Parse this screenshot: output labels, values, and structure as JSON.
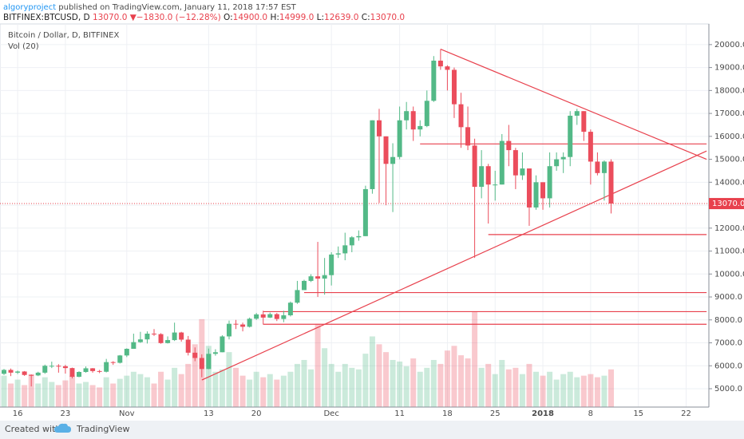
{
  "header": {
    "author": "algoryproject",
    "published": "published on TradingView.com, January 11, 2018 17:57 EST",
    "symbol": "BITFINEX:BTCUSD, D",
    "last": "13070.0",
    "arrow": "▼",
    "change": "−1830.0 (−12.28%)",
    "o_label": "O:",
    "o": "14900.0",
    "h_label": "H:",
    "h": "14999.0",
    "l_label": "L:",
    "l": "12639.0",
    "c_label": "C:",
    "c": "13070.0"
  },
  "footer": {
    "created": "Created with",
    "brand": "TradingView"
  },
  "chart_data": {
    "type": "candlestick",
    "title": "Bitcoin / Dollar, D, BITFINEX",
    "volume_label": "Vol (20)",
    "up_color": "#53b987",
    "down_color": "#eb4d5c",
    "line_color": "#e8414d",
    "categories": [
      "2017-10-14",
      "2017-10-15",
      "2017-10-16",
      "2017-10-17",
      "2017-10-18",
      "2017-10-19",
      "2017-10-20",
      "2017-10-21",
      "2017-10-22",
      "2017-10-23",
      "2017-10-24",
      "2017-10-25",
      "2017-10-26",
      "2017-10-27",
      "2017-10-28",
      "2017-10-29",
      "2017-10-30",
      "2017-10-31",
      "2017-11-01",
      "2017-11-02",
      "2017-11-03",
      "2017-11-04",
      "2017-11-05",
      "2017-11-06",
      "2017-11-07",
      "2017-11-08",
      "2017-11-09",
      "2017-11-10",
      "2017-11-11",
      "2017-11-12",
      "2017-11-13",
      "2017-11-14",
      "2017-11-15",
      "2017-11-16",
      "2017-11-17",
      "2017-11-18",
      "2017-11-19",
      "2017-11-20",
      "2017-11-21",
      "2017-11-22",
      "2017-11-23",
      "2017-11-24",
      "2017-11-25",
      "2017-11-26",
      "2017-11-27",
      "2017-11-28",
      "2017-11-29",
      "2017-11-30",
      "2017-12-01",
      "2017-12-02",
      "2017-12-03",
      "2017-12-04",
      "2017-12-05",
      "2017-12-06",
      "2017-12-07",
      "2017-12-08",
      "2017-12-09",
      "2017-12-10",
      "2017-12-11",
      "2017-12-12",
      "2017-12-13",
      "2017-12-14",
      "2017-12-15",
      "2017-12-16",
      "2017-12-17",
      "2017-12-18",
      "2017-12-19",
      "2017-12-20",
      "2017-12-21",
      "2017-12-22",
      "2017-12-23",
      "2017-12-24",
      "2017-12-25",
      "2017-12-26",
      "2017-12-27",
      "2017-12-28",
      "2017-12-29",
      "2017-12-30",
      "2017-12-31",
      "2018-01-01",
      "2018-01-02",
      "2018-01-03",
      "2018-01-04",
      "2018-01-05",
      "2018-01-06",
      "2018-01-07",
      "2018-01-08",
      "2018-01-09",
      "2018-01-10",
      "2018-01-11"
    ],
    "open": [
      5650,
      5820,
      5700,
      5750,
      5600,
      5580,
      5700,
      6000,
      6000,
      5980,
      5900,
      5520,
      5730,
      5890,
      5770,
      5740,
      6160,
      6130,
      6450,
      6740,
      7030,
      7150,
      7400,
      7380,
      6990,
      7120,
      7450,
      7140,
      6570,
      6340,
      5860,
      6520,
      6590,
      7280,
      7830,
      7800,
      7700,
      8050,
      8240,
      8100,
      8250,
      8040,
      8200,
      8750,
      9300,
      9700,
      9900,
      9800,
      9950,
      10850,
      10900,
      11250,
      11600,
      11650,
      13700,
      16700,
      16000,
      14800,
      15100,
      16700,
      17100,
      16300,
      16450,
      17550,
      19300,
      19050,
      18900,
      17400,
      16400,
      15600,
      13800,
      14700,
      13900,
      13900,
      15800,
      15400,
      14300,
      14600,
      12900,
      14000,
      13300,
      14700,
      15000,
      15100,
      16900,
      17100,
      16200,
      14900,
      14400,
      14900
    ],
    "high": [
      5860,
      5880,
      5790,
      5770,
      5620,
      5740,
      6050,
      6180,
      6070,
      6040,
      5920,
      5760,
      5970,
      5900,
      5820,
      6300,
      6200,
      6470,
      6760,
      7400,
      7480,
      7500,
      7600,
      7420,
      7280,
      7880,
      7480,
      7300,
      6800,
      6500,
      6750,
      6720,
      7330,
      7970,
      8000,
      7880,
      8100,
      8300,
      8400,
      8320,
      8300,
      8400,
      8800,
      9700,
      9750,
      9990,
      11400,
      10700,
      10950,
      11200,
      11800,
      11650,
      11900,
      13850,
      16700,
      17200,
      16000,
      15700,
      17300,
      17500,
      17300,
      16700,
      18000,
      19500,
      19800,
      19100,
      19000,
      17900,
      17300,
      15900,
      15400,
      14800,
      14500,
      16100,
      16500,
      15500,
      15300,
      14600,
      14300,
      14000,
      15300,
      15300,
      15300,
      17100,
      17200,
      17100,
      16300,
      15300,
      14950,
      14999
    ],
    "low": [
      5600,
      5550,
      5640,
      5560,
      5100,
      5550,
      5650,
      5900,
      5700,
      5660,
      5450,
      5500,
      5700,
      5700,
      5680,
      5710,
      6040,
      6100,
      6380,
      6740,
      7000,
      6970,
      7300,
      6960,
      6970,
      7080,
      7050,
      6450,
      6200,
      5500,
      5850,
      6440,
      6590,
      7150,
      7600,
      7500,
      7670,
      8000,
      7800,
      8080,
      7950,
      7900,
      8150,
      8700,
      9300,
      9650,
      9000,
      9100,
      9500,
      10700,
      10600,
      10950,
      11450,
      11650,
      13500,
      13100,
      13000,
      12700,
      15000,
      16300,
      15800,
      16000,
      16400,
      17500,
      18900,
      18000,
      16800,
      15500,
      15400,
      10700,
      13300,
      12200,
      13200,
      13900,
      14700,
      13700,
      14100,
      12100,
      12800,
      12800,
      12900,
      14500,
      14400,
      14700,
      16500,
      15800,
      13900,
      14300,
      13200,
      12639
    ],
    "close": [
      5820,
      5700,
      5750,
      5600,
      5580,
      5700,
      6000,
      6000,
      5980,
      5900,
      5520,
      5730,
      5890,
      5770,
      5740,
      6160,
      6130,
      6450,
      6740,
      7030,
      7150,
      7400,
      7380,
      6990,
      7120,
      7450,
      7140,
      6570,
      6340,
      5860,
      6520,
      6590,
      7280,
      7830,
      7800,
      7700,
      8050,
      8240,
      8100,
      8250,
      8040,
      8200,
      8750,
      9300,
      9700,
      9900,
      9800,
      9950,
      10850,
      10900,
      11250,
      11600,
      11650,
      13700,
      16700,
      16000,
      14800,
      15100,
      16700,
      17100,
      16300,
      16450,
      17550,
      19300,
      19050,
      18900,
      17400,
      16400,
      15600,
      13800,
      14700,
      13900,
      13900,
      15800,
      15400,
      14300,
      14600,
      12900,
      14000,
      13300,
      14700,
      15000,
      15100,
      16900,
      17100,
      16200,
      14900,
      14400,
      14900,
      13070
    ],
    "volume": [
      40,
      30,
      35,
      28,
      42,
      30,
      38,
      32,
      28,
      34,
      40,
      30,
      32,
      28,
      25,
      38,
      30,
      36,
      40,
      45,
      42,
      38,
      30,
      45,
      35,
      50,
      42,
      55,
      80,
      112,
      78,
      45,
      48,
      70,
      50,
      40,
      35,
      45,
      38,
      42,
      35,
      40,
      45,
      55,
      60,
      48,
      106,
      75,
      55,
      45,
      55,
      50,
      48,
      68,
      90,
      80,
      70,
      60,
      58,
      52,
      62,
      45,
      50,
      60,
      55,
      72,
      78,
      66,
      62,
      122,
      50,
      55,
      42,
      60,
      48,
      50,
      42,
      55,
      45,
      40,
      45,
      35,
      42,
      45,
      38,
      40,
      42,
      38,
      40,
      48
    ],
    "ylim": [
      4200,
      20900
    ],
    "yticks": [
      {
        "value": 5000,
        "label": "5000.0"
      },
      {
        "value": 6000,
        "label": "6000.0"
      },
      {
        "value": 7000,
        "label": "7000.0"
      },
      {
        "value": 8000,
        "label": "8000.0"
      },
      {
        "value": 9000,
        "label": "9000.0"
      },
      {
        "value": 10000,
        "label": "10000.0"
      },
      {
        "value": 11000,
        "label": "11000.0"
      },
      {
        "value": 12000,
        "label": "12000.0"
      },
      {
        "value": 13000,
        "label": "13000.0"
      },
      {
        "value": 14000,
        "label": "14000.0"
      },
      {
        "value": 15000,
        "label": "15000.0"
      },
      {
        "value": 16000,
        "label": "16000.0"
      },
      {
        "value": 17000,
        "label": "17000.0"
      },
      {
        "value": 18000,
        "label": "18000.0"
      },
      {
        "value": 19000,
        "label": "19000.0"
      },
      {
        "value": 20000,
        "label": "20000.0"
      }
    ],
    "xticks": [
      {
        "value": "2017-10-16",
        "label": "16"
      },
      {
        "value": "2017-10-23",
        "label": "23"
      },
      {
        "value": "2017-11-01",
        "label": "Nov"
      },
      {
        "value": "2017-11-13",
        "label": "13"
      },
      {
        "value": "2017-11-20",
        "label": "20"
      },
      {
        "value": "2017-12-01",
        "label": "Dec"
      },
      {
        "value": "2017-12-11",
        "label": "11"
      },
      {
        "value": "2017-12-18",
        "label": "18"
      },
      {
        "value": "2017-12-25",
        "label": "25"
      },
      {
        "value": "2018-01-01",
        "label": "2018"
      },
      {
        "value": "2018-01-08",
        "label": "8"
      },
      {
        "value": "2018-01-15",
        "label": "15"
      },
      {
        "value": "2018-01-22",
        "label": "22"
      }
    ],
    "trendlines": [
      {
        "x1": "2017-12-17",
        "y1": 19800,
        "x2": "2018-01-25",
        "y2": 15000
      },
      {
        "x1": "2017-11-12",
        "y1": 5380,
        "x2": "2018-01-25",
        "y2": 15360
      },
      {
        "x1": "2017-12-14",
        "y1": 15670,
        "x2": "2018-01-25",
        "y2": 15670
      },
      {
        "x1": "2017-12-24",
        "y1": 11720,
        "x2": "2018-01-25",
        "y2": 11720
      },
      {
        "x1": "2017-11-27",
        "y1": 9190,
        "x2": "2018-01-25",
        "y2": 9190
      },
      {
        "x1": "2017-11-21",
        "y1": 8360,
        "x2": "2018-01-25",
        "y2": 8360
      },
      {
        "x1": "2017-11-21",
        "y1": 7810,
        "x2": "2018-01-25",
        "y2": 7810
      }
    ],
    "grid": true
  }
}
